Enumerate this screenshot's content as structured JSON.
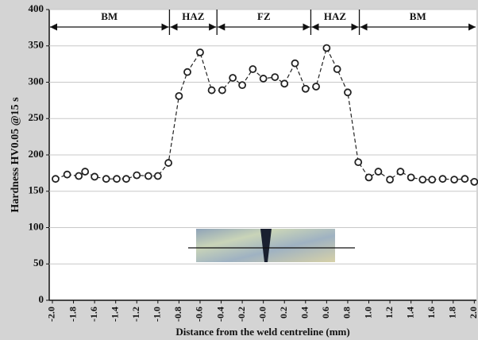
{
  "chart_data": {
    "type": "line",
    "x_label": "Distance from the weld centreline (mm)",
    "y_label": "Hardness HV0.05 @15 s",
    "x": [
      -1.97,
      -1.86,
      -1.75,
      -1.69,
      -1.6,
      -1.49,
      -1.39,
      -1.3,
      -1.2,
      -1.09,
      -1.0,
      -0.9,
      -0.8,
      -0.72,
      -0.6,
      -0.49,
      -0.39,
      -0.29,
      -0.2,
      -0.1,
      0.0,
      0.11,
      0.2,
      0.3,
      0.4,
      0.5,
      0.6,
      0.7,
      0.8,
      0.9,
      1.0,
      1.09,
      1.2,
      1.3,
      1.4,
      1.51,
      1.6,
      1.7,
      1.81,
      1.91,
      2.0
    ],
    "series": [
      {
        "color": "#222222",
        "values": [
          167,
          173,
          171,
          177,
          170,
          167,
          167,
          167,
          172,
          171,
          171,
          189,
          281,
          314,
          341,
          289,
          289,
          306,
          296,
          318,
          305,
          307,
          298,
          326,
          291,
          294,
          347,
          318,
          286,
          190,
          169,
          177,
          166,
          177,
          169,
          166,
          166,
          167,
          166,
          167,
          163
        ]
      }
    ],
    "xlim": [
      -2.03,
      2.02
    ],
    "ylim": [
      0,
      400
    ],
    "xticks": [
      {
        "value": -2,
        "label": "-2.0"
      },
      -1.8,
      -1.6,
      -1.4,
      -1.2,
      {
        "value": -1,
        "label": "-1.0"
      },
      -0.8,
      -0.6,
      -0.4,
      -0.2,
      {
        "value": 0,
        "label": "-0.0"
      },
      0.2,
      0.4,
      0.6,
      0.8,
      {
        "value": 1,
        "label": "1.0"
      },
      1.2,
      1.4,
      1.6,
      1.8,
      {
        "value": 2,
        "label": "2.0"
      }
    ],
    "yticks": [
      0,
      50,
      100,
      150,
      200,
      250,
      300,
      350,
      400
    ],
    "grid": true,
    "zones": [
      {
        "label": "BM",
        "from": -2.03,
        "to": -0.89
      },
      {
        "label": "HAZ",
        "from": -0.89,
        "to": -0.44
      },
      {
        "label": "FZ",
        "from": -0.44,
        "to": 0.45
      },
      {
        "label": "HAZ",
        "from": 0.45,
        "to": 0.91
      },
      {
        "label": "BM",
        "from": 0.91,
        "to": 2.02
      }
    ]
  }
}
